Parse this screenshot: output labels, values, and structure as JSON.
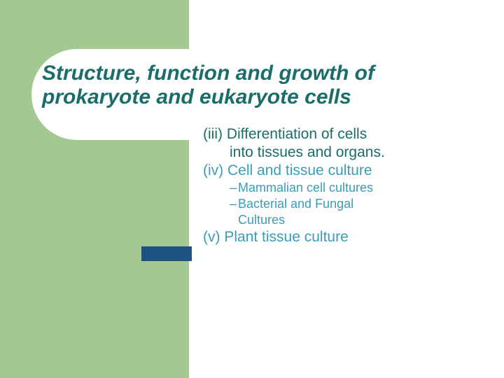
{
  "colors": {
    "sidebar_bg": "#a3c891",
    "pill_bg": "#ffffff",
    "title_color": "#1b6d6a",
    "body_dark": "#1b6d6a",
    "body_light": "#3a9cb5",
    "accent_bar": "#1d5282",
    "page_bg": "#ffffff"
  },
  "typography": {
    "title_fontsize": 30,
    "body_fontsize": 21,
    "sub_fontsize": 18
  },
  "title": {
    "line1": "Structure, function and growth of",
    "line2": "prokaryote and eukaryote cells"
  },
  "content": {
    "item1": {
      "marker": "(iii)",
      "text_a": "Differentiation of cells",
      "text_b": "into tissues and organs."
    },
    "item2": {
      "marker": "(iv)",
      "text": "Cell and tissue culture"
    },
    "sub1": "Mammalian cell cultures",
    "sub2a": "Bacterial and Fungal",
    "sub2b": "Cultures",
    "item3": {
      "marker": "(v)",
      "text": "Plant tissue culture"
    }
  }
}
